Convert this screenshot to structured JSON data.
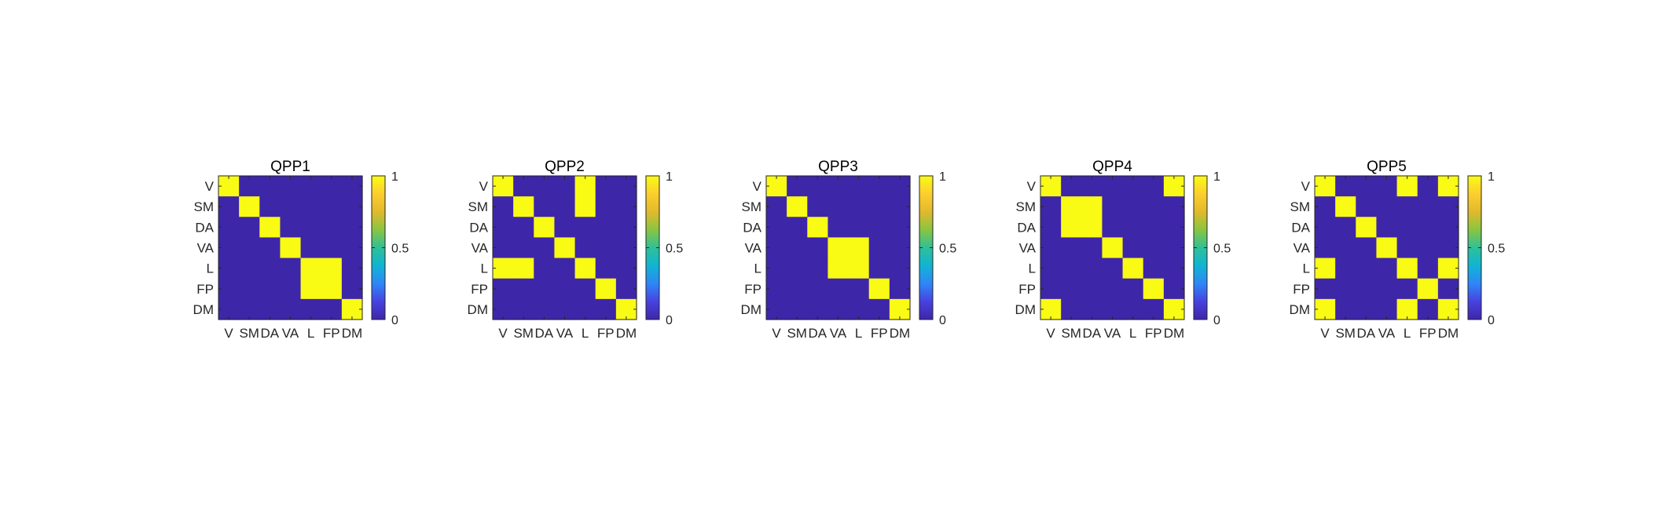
{
  "chart_data": [
    {
      "type": "heatmap",
      "title": "QPP1",
      "categories": [
        "V",
        "SM",
        "DA",
        "VA",
        "L",
        "FP",
        "DM"
      ],
      "matrix": [
        [
          1,
          0,
          0,
          0,
          0,
          0,
          0
        ],
        [
          0,
          1,
          0,
          0,
          0,
          0,
          0
        ],
        [
          0,
          0,
          1,
          0,
          0,
          0,
          0
        ],
        [
          0,
          0,
          0,
          1,
          0,
          0,
          0
        ],
        [
          0,
          0,
          0,
          0,
          1,
          1,
          0
        ],
        [
          0,
          0,
          0,
          0,
          1,
          1,
          0
        ],
        [
          0,
          0,
          0,
          0,
          0,
          0,
          1
        ]
      ],
      "clim": [
        0,
        1
      ],
      "colorbar_ticks": [
        "0",
        "0.5",
        "1"
      ],
      "colorbar_tick_values": [
        0,
        0.5,
        1
      ]
    },
    {
      "type": "heatmap",
      "title": "QPP2",
      "categories": [
        "V",
        "SM",
        "DA",
        "VA",
        "L",
        "FP",
        "DM"
      ],
      "matrix": [
        [
          1,
          0,
          0,
          0,
          1,
          0,
          0
        ],
        [
          0,
          1,
          0,
          0,
          1,
          0,
          0
        ],
        [
          0,
          0,
          1,
          0,
          0,
          0,
          0
        ],
        [
          0,
          0,
          0,
          1,
          0,
          0,
          0
        ],
        [
          1,
          1,
          0,
          0,
          1,
          0,
          0
        ],
        [
          0,
          0,
          0,
          0,
          0,
          1,
          0
        ],
        [
          0,
          0,
          0,
          0,
          0,
          0,
          1
        ]
      ],
      "clim": [
        0,
        1
      ],
      "colorbar_ticks": [
        "0",
        "0.5",
        "1"
      ],
      "colorbar_tick_values": [
        0,
        0.5,
        1
      ]
    },
    {
      "type": "heatmap",
      "title": "QPP3",
      "categories": [
        "V",
        "SM",
        "DA",
        "VA",
        "L",
        "FP",
        "DM"
      ],
      "matrix": [
        [
          1,
          0,
          0,
          0,
          0,
          0,
          0
        ],
        [
          0,
          1,
          0,
          0,
          0,
          0,
          0
        ],
        [
          0,
          0,
          1,
          0,
          0,
          0,
          0
        ],
        [
          0,
          0,
          0,
          1,
          1,
          0,
          0
        ],
        [
          0,
          0,
          0,
          1,
          1,
          0,
          0
        ],
        [
          0,
          0,
          0,
          0,
          0,
          1,
          0
        ],
        [
          0,
          0,
          0,
          0,
          0,
          0,
          1
        ]
      ],
      "clim": [
        0,
        1
      ],
      "colorbar_ticks": [
        "0",
        "0.5",
        "1"
      ],
      "colorbar_tick_values": [
        0,
        0.5,
        1
      ]
    },
    {
      "type": "heatmap",
      "title": "QPP4",
      "categories": [
        "V",
        "SM",
        "DA",
        "VA",
        "L",
        "FP",
        "DM"
      ],
      "matrix": [
        [
          1,
          0,
          0,
          0,
          0,
          0,
          1
        ],
        [
          0,
          1,
          1,
          0,
          0,
          0,
          0
        ],
        [
          0,
          1,
          1,
          0,
          0,
          0,
          0
        ],
        [
          0,
          0,
          0,
          1,
          0,
          0,
          0
        ],
        [
          0,
          0,
          0,
          0,
          1,
          0,
          0
        ],
        [
          0,
          0,
          0,
          0,
          0,
          1,
          0
        ],
        [
          1,
          0,
          0,
          0,
          0,
          0,
          1
        ]
      ],
      "clim": [
        0,
        1
      ],
      "colorbar_ticks": [
        "0",
        "0.5",
        "1"
      ],
      "colorbar_tick_values": [
        0,
        0.5,
        1
      ]
    },
    {
      "type": "heatmap",
      "title": "QPP5",
      "categories": [
        "V",
        "SM",
        "DA",
        "VA",
        "L",
        "FP",
        "DM"
      ],
      "matrix": [
        [
          1,
          0,
          0,
          0,
          1,
          0,
          1
        ],
        [
          0,
          1,
          0,
          0,
          0,
          0,
          0
        ],
        [
          0,
          0,
          1,
          0,
          0,
          0,
          0
        ],
        [
          0,
          0,
          0,
          1,
          0,
          0,
          0
        ],
        [
          1,
          0,
          0,
          0,
          1,
          0,
          1
        ],
        [
          0,
          0,
          0,
          0,
          0,
          1,
          0
        ],
        [
          1,
          0,
          0,
          0,
          1,
          0,
          1
        ]
      ],
      "clim": [
        0,
        1
      ],
      "colorbar_ticks": [
        "0",
        "0.5",
        "1"
      ],
      "colorbar_tick_values": [
        0,
        0.5,
        1
      ]
    }
  ],
  "colors": {
    "low": "#3E26A8",
    "high": "#F9FB15",
    "colormap": [
      "#3E26A8",
      "#4742E0",
      "#2E87F7",
      "#10B4D3",
      "#2FC098",
      "#89C541",
      "#E1B92B",
      "#FCCE2E",
      "#F9FB15"
    ]
  }
}
